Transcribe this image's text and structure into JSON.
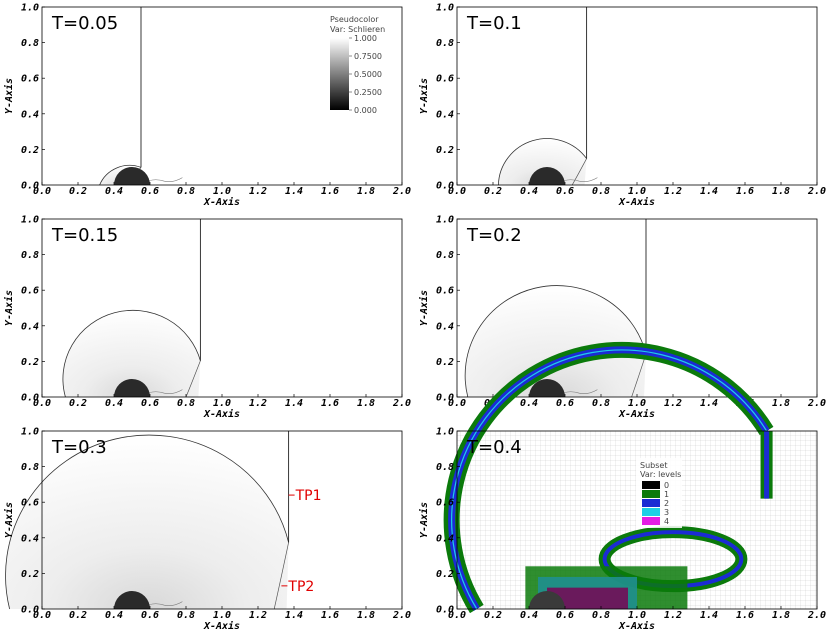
{
  "chart_data": {
    "type": "heatmap",
    "layout": "3x2 grid of plots",
    "panels": [
      {
        "title": "T=0.05",
        "plot": "Pseudocolor",
        "var": "Schlieren",
        "shock_x": 0.55,
        "bow_radius": 0.18,
        "xlabel": "X-Axis",
        "ylabel": "Y-Axis",
        "xlim": [
          0.0,
          2.0
        ],
        "ylim": [
          0.0,
          1.0
        ]
      },
      {
        "title": "T=0.1",
        "plot": "Pseudocolor",
        "var": "Schlieren",
        "shock_x": 0.72,
        "bow_radius": 0.27,
        "xlabel": "X-Axis",
        "ylabel": "Y-Axis",
        "xlim": [
          0.0,
          2.0
        ],
        "ylim": [
          0.0,
          1.0
        ]
      },
      {
        "title": "T=0.15",
        "plot": "Pseudocolor",
        "var": "Schlieren",
        "shock_x": 0.88,
        "bow_radius": 0.37,
        "xlabel": "X-Axis",
        "ylabel": "Y-Axis",
        "xlim": [
          0.0,
          2.0
        ],
        "ylim": [
          0.0,
          1.0
        ]
      },
      {
        "title": "T=0.2",
        "plot": "Pseudocolor",
        "var": "Schlieren",
        "shock_x": 1.05,
        "bow_radius": 0.44,
        "xlabel": "X-Axis",
        "ylabel": "Y-Axis",
        "xlim": [
          0.0,
          2.0
        ],
        "ylim": [
          0.0,
          1.0
        ]
      },
      {
        "title": "T=0.3",
        "plot": "Pseudocolor",
        "var": "Schlieren",
        "shock_x": 1.37,
        "bow_radius": 0.68,
        "xlabel": "X-Axis",
        "ylabel": "Y-Axis",
        "xlim": [
          0.0,
          2.0
        ],
        "ylim": [
          0.0,
          1.0
        ],
        "annotations": [
          {
            "text": "TP1",
            "x": 1.37,
            "y": 0.64
          },
          {
            "text": "TP2",
            "x": 1.33,
            "y": 0.13
          }
        ]
      },
      {
        "title": "T=0.4",
        "plot": "Subset",
        "var": "levels",
        "xlabel": "X-Axis",
        "ylabel": "Y-Axis",
        "xlim": [
          0.0,
          2.0
        ],
        "ylim": [
          0.0,
          1.0
        ]
      }
    ],
    "xticks": [
      "0.0",
      "0.2",
      "0.4",
      "0.6",
      "0.8",
      "1.0",
      "1.2",
      "1.4",
      "1.6",
      "1.8",
      "2.0"
    ],
    "yticks": [
      "0.0",
      "0.2",
      "0.4",
      "0.6",
      "0.8",
      "1.0"
    ],
    "cylinder": {
      "cx": 0.5,
      "cy": 0.0,
      "r": 0.1
    },
    "pseudocolor_legend": {
      "title": "Pseudocolor",
      "var_label": "Var: Schlieren",
      "ticks": [
        "1.000",
        "0.7500",
        "0.5000",
        "0.2500",
        "0.000"
      ],
      "range": [
        0.0,
        1.0
      ]
    },
    "subset_legend": {
      "title": "Subset",
      "var_label": "Var: levels",
      "entries": [
        {
          "label": "0",
          "color": "#000000"
        },
        {
          "label": "1",
          "color": "#0b7a0b"
        },
        {
          "label": "2",
          "color": "#1b2bd4"
        },
        {
          "label": "3",
          "color": "#1ecfe6"
        },
        {
          "label": "4",
          "color": "#e41ce4"
        }
      ]
    }
  }
}
